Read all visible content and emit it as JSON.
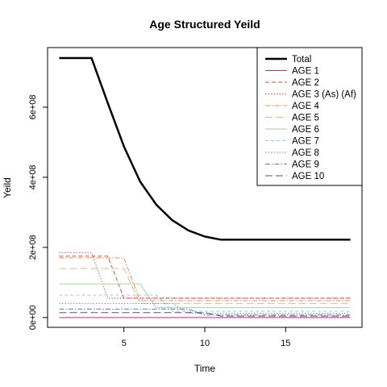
{
  "chart_data": {
    "type": "line",
    "title": "Age Structured Yeild",
    "xlabel": "Time",
    "ylabel": "Yeild",
    "xlim": [
      0.28,
      19.72
    ],
    "ylim": [
      -28000000,
      770000000
    ],
    "x_ticks": [
      5,
      10,
      15
    ],
    "y_ticks": [
      0,
      200000000,
      400000000,
      600000000
    ],
    "y_tick_labels": [
      "0e+00",
      "2e+08",
      "4e+08",
      "6e+08"
    ],
    "legend_position": "top-right",
    "x": [
      1,
      2,
      3,
      4,
      5,
      6,
      7,
      8,
      9,
      10,
      11,
      12,
      13,
      14,
      15,
      16,
      17,
      18,
      19
    ],
    "series": [
      {
        "name": "Total",
        "color": "#000000",
        "dash": "solid",
        "width": 2.5,
        "values": [
          740000000,
          740000000,
          740000000,
          612000000,
          488000000,
          388000000,
          322000000,
          277000000,
          248000000,
          231000000,
          222000000,
          222000000,
          222000000,
          222000000,
          222000000,
          222000000,
          222000000,
          222000000,
          222000000
        ]
      },
      {
        "name": "AGE 1",
        "color": "#d62a6b",
        "dash": "solid",
        "width": 1,
        "values": [
          0,
          0,
          0,
          0,
          0,
          0,
          0,
          0,
          0,
          0,
          0,
          0,
          0,
          0,
          0,
          0,
          0,
          0,
          0
        ]
      },
      {
        "name": "AGE 2",
        "color": "#e0484d",
        "dash": "5,3",
        "width": 1,
        "values": [
          175000000,
          175000000,
          175000000,
          175000000,
          55000000,
          55000000,
          55000000,
          55000000,
          55000000,
          55000000,
          55000000,
          55000000,
          55000000,
          55000000,
          55000000,
          55000000,
          55000000,
          55000000,
          55000000
        ]
      },
      {
        "name": "AGE 3 (As) (Af)",
        "color": "#e8463c",
        "dash": "1.5,2",
        "width": 1,
        "values": [
          185000000,
          185000000,
          185000000,
          55000000,
          55000000,
          55000000,
          55000000,
          55000000,
          55000000,
          55000000,
          55000000,
          55000000,
          55000000,
          55000000,
          55000000,
          55000000,
          55000000,
          55000000,
          55000000
        ]
      },
      {
        "name": "AGE 4",
        "color": "#f08a4b",
        "dash": "6,2,1.5,2",
        "width": 1,
        "values": [
          170000000,
          170000000,
          170000000,
          170000000,
          170000000,
          48000000,
          48000000,
          48000000,
          48000000,
          48000000,
          48000000,
          48000000,
          48000000,
          48000000,
          48000000,
          48000000,
          48000000,
          48000000,
          48000000
        ]
      },
      {
        "name": "AGE 5",
        "color": "#e6b88a",
        "dash": "9,4",
        "width": 1,
        "values": [
          140000000,
          140000000,
          140000000,
          140000000,
          140000000,
          40000000,
          40000000,
          40000000,
          40000000,
          40000000,
          40000000,
          40000000,
          40000000,
          40000000,
          40000000,
          40000000,
          40000000,
          40000000,
          40000000
        ]
      },
      {
        "name": "AGE 6",
        "color": "#9fd79f",
        "dash": "solid",
        "width": 1,
        "values": [
          96000000,
          96000000,
          96000000,
          96000000,
          96000000,
          96000000,
          28000000,
          28000000,
          28000000,
          28000000,
          28000000,
          28000000,
          28000000,
          28000000,
          28000000,
          28000000,
          28000000,
          28000000,
          28000000
        ]
      },
      {
        "name": "AGE 7",
        "color": "#9ec9dd",
        "dash": "4,3",
        "width": 1,
        "values": [
          64000000,
          64000000,
          64000000,
          64000000,
          64000000,
          64000000,
          64000000,
          18000000,
          18000000,
          18000000,
          18000000,
          18000000,
          18000000,
          18000000,
          18000000,
          18000000,
          18000000,
          18000000,
          18000000
        ]
      },
      {
        "name": "AGE 8",
        "color": "#5a96c8",
        "dash": "1.5,2",
        "width": 1,
        "values": [
          40000000,
          40000000,
          40000000,
          40000000,
          40000000,
          40000000,
          40000000,
          40000000,
          12000000,
          12000000,
          12000000,
          12000000,
          12000000,
          12000000,
          12000000,
          12000000,
          12000000,
          12000000,
          12000000
        ]
      },
      {
        "name": "AGE 9",
        "color": "#6877b8",
        "dash": "6,2,1.5,2",
        "width": 1,
        "values": [
          24000000,
          24000000,
          24000000,
          24000000,
          24000000,
          24000000,
          24000000,
          24000000,
          24000000,
          7000000,
          7000000,
          7000000,
          7000000,
          7000000,
          7000000,
          7000000,
          7000000,
          7000000,
          7000000
        ]
      },
      {
        "name": "AGE 10",
        "color": "#555a66",
        "dash": "9,4",
        "width": 1,
        "values": [
          14000000,
          14000000,
          14000000,
          14000000,
          14000000,
          14000000,
          14000000,
          14000000,
          14000000,
          14000000,
          4000000,
          4000000,
          4000000,
          4000000,
          4000000,
          4000000,
          4000000,
          4000000,
          4000000
        ]
      }
    ]
  }
}
